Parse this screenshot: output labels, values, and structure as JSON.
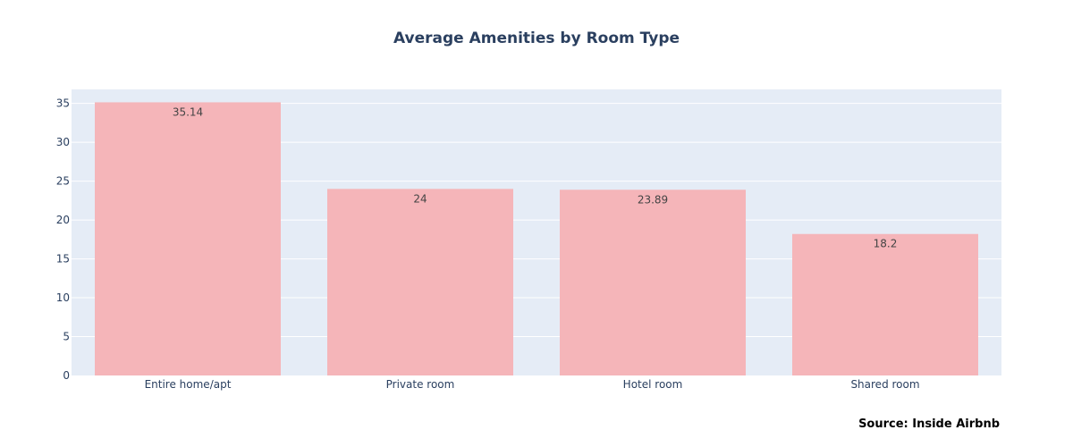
{
  "chart_data": {
    "type": "bar",
    "title": "Average Amenities by Room Type",
    "categories": [
      "Entire home/apt",
      "Private room",
      "Hotel room",
      "Shared room"
    ],
    "values": [
      35.14,
      24,
      23.89,
      18.2
    ],
    "data_labels": [
      "35.14",
      "24",
      "23.89",
      "18.2"
    ],
    "xlabel": "",
    "ylabel": "",
    "ylim": [
      0,
      36.8
    ],
    "yticks": [
      0,
      5,
      10,
      15,
      20,
      25,
      30,
      35
    ],
    "grid": true,
    "legend": "none",
    "colors": {
      "bar": "#f5b5b9",
      "plot_bg": "#e5ecf6",
      "grid": "#ffffff",
      "text": "#2a3f5f"
    }
  },
  "annotation": {
    "source": "Source: Inside Airbnb"
  }
}
